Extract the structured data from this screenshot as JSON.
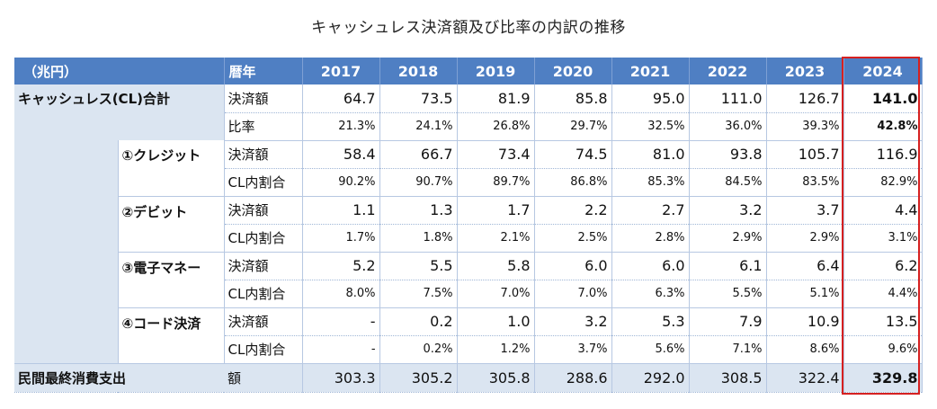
{
  "title": "キャッシュレス決済額及び比率の内訳の推移",
  "header": {
    "unit": "（兆円）",
    "rekinen": "暦年",
    "years": [
      "2017",
      "2018",
      "2019",
      "2020",
      "2021",
      "2022",
      "2023",
      "2024"
    ]
  },
  "total": {
    "label": "キャッシュレス(CL)合計",
    "amount_label": "決済額",
    "amount": [
      "64.7",
      "73.5",
      "81.9",
      "85.8",
      "95.0",
      "111.0",
      "126.7",
      "141.0"
    ],
    "ratio_label": "比率",
    "ratio": [
      "21.3%",
      "24.1%",
      "26.8%",
      "29.7%",
      "32.5%",
      "36.0%",
      "39.3%",
      "42.8%"
    ]
  },
  "breakdown": [
    {
      "label": "①クレジット",
      "amount_label": "決済額",
      "amount": [
        "58.4",
        "66.7",
        "73.4",
        "74.5",
        "81.0",
        "93.8",
        "105.7",
        "116.9"
      ],
      "share_label": "CL内割合",
      "share": [
        "90.2%",
        "90.7%",
        "89.7%",
        "86.8%",
        "85.3%",
        "84.5%",
        "83.5%",
        "82.9%"
      ]
    },
    {
      "label": "②デビット",
      "amount_label": "決済額",
      "amount": [
        "1.1",
        "1.3",
        "1.7",
        "2.2",
        "2.7",
        "3.2",
        "3.7",
        "4.4"
      ],
      "share_label": "CL内割合",
      "share": [
        "1.7%",
        "1.8%",
        "2.1%",
        "2.5%",
        "2.8%",
        "2.9%",
        "2.9%",
        "3.1%"
      ]
    },
    {
      "label": "③電子マネー",
      "amount_label": "決済額",
      "amount": [
        "5.2",
        "5.5",
        "5.8",
        "6.0",
        "6.0",
        "6.1",
        "6.4",
        "6.2"
      ],
      "share_label": "CL内割合",
      "share": [
        "8.0%",
        "7.5%",
        "7.0%",
        "7.0%",
        "6.3%",
        "5.5%",
        "5.1%",
        "4.4%"
      ]
    },
    {
      "label": "④コード決済",
      "amount_label": "決済額",
      "amount": [
        "-",
        "0.2",
        "1.0",
        "3.2",
        "5.3",
        "7.9",
        "10.9",
        "13.5"
      ],
      "share_label": "CL内割合",
      "share": [
        "-",
        "0.2%",
        "1.2%",
        "3.7%",
        "5.6%",
        "7.1%",
        "8.6%",
        "9.6%"
      ]
    }
  ],
  "consumption": {
    "label": "民間最終消費支出",
    "amount_label": "額",
    "amount": [
      "303.3",
      "305.2",
      "305.8",
      "288.6",
      "292.0",
      "308.5",
      "322.4",
      "329.8"
    ]
  },
  "colors": {
    "header_bg": "#4f7fc3",
    "band_bg": "#dbe5f1",
    "highlight_border": "#d62020"
  }
}
